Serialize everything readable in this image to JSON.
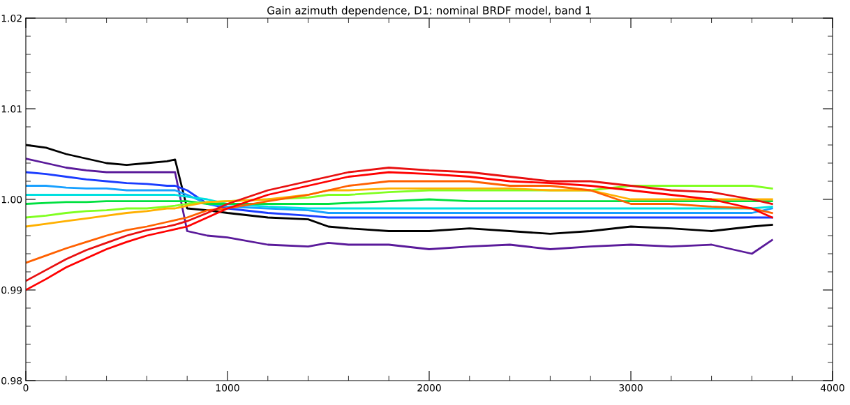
{
  "chart_data": {
    "type": "line",
    "title": "Gain azimuth dependence, D1: nominal BRDF model, band 1",
    "x": [
      0,
      100,
      200,
      300,
      400,
      500,
      600,
      700,
      740,
      800,
      900,
      1000,
      1200,
      1400,
      1500,
      1600,
      1800,
      2000,
      2200,
      2400,
      2600,
      2800,
      3000,
      3200,
      3400,
      3600,
      3700
    ],
    "series": [
      {
        "color": "#000000",
        "values": [
          1.006,
          1.0057,
          1.005,
          1.0045,
          1.004,
          1.0038,
          1.004,
          1.0042,
          1.0044,
          0.999,
          0.9988,
          0.9985,
          0.998,
          0.9978,
          0.997,
          0.9968,
          0.9965,
          0.9965,
          0.9968,
          0.9965,
          0.9962,
          0.9965,
          0.997,
          0.9968,
          0.9965,
          0.997,
          0.9972
        ]
      },
      {
        "color": "#5a1a9a",
        "values": [
          1.0045,
          1.004,
          1.0035,
          1.0032,
          1.003,
          1.003,
          1.003,
          1.003,
          1.003,
          0.9965,
          0.996,
          0.9958,
          0.995,
          0.9948,
          0.9952,
          0.995,
          0.995,
          0.9945,
          0.9948,
          0.995,
          0.9945,
          0.9948,
          0.995,
          0.9948,
          0.995,
          0.994,
          0.9955
        ]
      },
      {
        "color": "#1a3cff",
        "values": [
          1.003,
          1.0028,
          1.0025,
          1.0022,
          1.002,
          1.0018,
          1.0017,
          1.0015,
          1.0015,
          1.001,
          0.9995,
          0.999,
          0.9985,
          0.9982,
          0.998,
          0.998,
          0.998,
          0.998,
          0.998,
          0.998,
          0.998,
          0.998,
          0.998,
          0.998,
          0.998,
          0.998,
          0.998
        ]
      },
      {
        "color": "#18a0ff",
        "values": [
          1.0015,
          1.0015,
          1.0013,
          1.0012,
          1.0012,
          1.001,
          1.001,
          1.001,
          1.001,
          1.0005,
          0.9995,
          0.9992,
          0.999,
          0.9988,
          0.9985,
          0.9985,
          0.9985,
          0.9985,
          0.9985,
          0.9985,
          0.9985,
          0.9985,
          0.9985,
          0.9985,
          0.9985,
          0.9985,
          0.999
        ]
      },
      {
        "color": "#00e0e0",
        "values": [
          1.0005,
          1.0005,
          1.0005,
          1.0005,
          1.0005,
          1.0005,
          1.0005,
          1.0005,
          1.0005,
          1.0003,
          1.0,
          0.9995,
          0.9992,
          0.999,
          0.999,
          0.999,
          0.999,
          0.999,
          0.999,
          0.999,
          0.999,
          0.999,
          0.999,
          0.999,
          0.999,
          0.999,
          0.9992
        ]
      },
      {
        "color": "#00e040",
        "values": [
          0.9995,
          0.9996,
          0.9997,
          0.9997,
          0.9998,
          0.9998,
          0.9998,
          0.9998,
          0.9998,
          0.9998,
          0.9995,
          0.9995,
          0.9995,
          0.9995,
          0.9995,
          0.9996,
          0.9998,
          1.0,
          0.9998,
          0.9998,
          0.9998,
          0.9998,
          0.9998,
          0.9998,
          0.9998,
          0.9998,
          0.9998
        ]
      },
      {
        "color": "#80ff20",
        "values": [
          0.998,
          0.9982,
          0.9985,
          0.9987,
          0.9988,
          0.999,
          0.999,
          0.9992,
          0.9993,
          0.9995,
          0.9997,
          0.9998,
          1.0,
          1.0002,
          1.0005,
          1.0005,
          1.0008,
          1.001,
          1.001,
          1.001,
          1.001,
          1.001,
          1.0015,
          1.0015,
          1.0015,
          1.0015,
          1.0012
        ]
      },
      {
        "color": "#ffb000",
        "values": [
          0.997,
          0.9973,
          0.9976,
          0.9979,
          0.9982,
          0.9985,
          0.9987,
          0.999,
          0.999,
          0.9993,
          0.9997,
          0.9998,
          1.0,
          1.0005,
          1.001,
          1.001,
          1.0012,
          1.0012,
          1.0012,
          1.0012,
          1.001,
          1.001,
          1.0,
          1.0,
          1.0,
          1.0,
          1.0
        ]
      },
      {
        "color": "#ff6000",
        "values": [
          0.993,
          0.9938,
          0.9946,
          0.9953,
          0.996,
          0.9966,
          0.997,
          0.9975,
          0.9977,
          0.998,
          0.9988,
          0.999,
          0.9998,
          1.0005,
          1.001,
          1.0015,
          1.002,
          1.002,
          1.002,
          1.0015,
          1.0015,
          1.001,
          0.9995,
          0.9995,
          0.9992,
          0.999,
          0.9985
        ]
      },
      {
        "color": "#ff0000",
        "values": [
          0.99,
          0.9912,
          0.9925,
          0.9935,
          0.9945,
          0.9953,
          0.996,
          0.9965,
          0.9967,
          0.997,
          0.998,
          0.999,
          1.0005,
          1.0015,
          1.002,
          1.0025,
          1.003,
          1.0028,
          1.0025,
          1.002,
          1.0018,
          1.0015,
          1.001,
          1.0005,
          1.0,
          0.999,
          0.998
        ]
      },
      {
        "color": "#e81010",
        "values": [
          0.991,
          0.9922,
          0.9934,
          0.9944,
          0.9952,
          0.996,
          0.9966,
          0.997,
          0.9972,
          0.9976,
          0.9985,
          0.9995,
          1.001,
          1.002,
          1.0025,
          1.003,
          1.0035,
          1.0032,
          1.003,
          1.0025,
          1.002,
          1.002,
          1.0015,
          1.001,
          1.0008,
          1.0,
          0.9995
        ]
      }
    ],
    "xlim": [
      0,
      4000
    ],
    "xticks": [
      0,
      1000,
      2000,
      3000,
      4000
    ],
    "ylim": [
      0.98,
      1.02
    ],
    "yticks": [
      0.98,
      0.99,
      {
        "value": 1.0,
        "label": "1.00"
      },
      1.01,
      1.02
    ],
    "grid": false,
    "legend": false,
    "marker": "none",
    "line_style": "solid"
  }
}
